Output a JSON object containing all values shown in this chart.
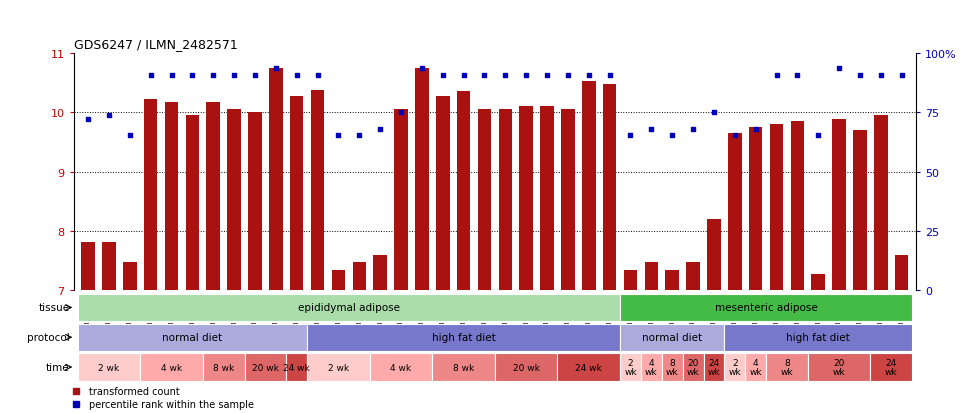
{
  "title": "GDS6247 / ILMN_2482571",
  "ylim": [
    7,
    11
  ],
  "yticks_left": [
    7,
    8,
    9,
    10,
    11
  ],
  "yticks_right_vals": [
    7,
    8,
    9,
    10,
    11
  ],
  "yticks_right_labels": [
    "0",
    "25",
    "50",
    "75",
    "100%"
  ],
  "samples": [
    "GSM971546",
    "GSM971547",
    "GSM971548",
    "GSM971549",
    "GSM971550",
    "GSM971551",
    "GSM971552",
    "GSM971553",
    "GSM971554",
    "GSM971555",
    "GSM971556",
    "GSM971557",
    "GSM971558",
    "GSM971559",
    "GSM971560",
    "GSM971561",
    "GSM971562",
    "GSM971563",
    "GSM971564",
    "GSM971565",
    "GSM971566",
    "GSM971567",
    "GSM971568",
    "GSM971569",
    "GSM971570",
    "GSM971571",
    "GSM971572",
    "GSM971573",
    "GSM971574",
    "GSM971575",
    "GSM971576",
    "GSM971577",
    "GSM971578",
    "GSM971579",
    "GSM971580",
    "GSM971581",
    "GSM971582",
    "GSM971583",
    "GSM971584",
    "GSM971585"
  ],
  "bar_values": [
    7.82,
    7.82,
    7.48,
    10.22,
    10.18,
    9.95,
    10.18,
    10.05,
    10.01,
    10.75,
    10.28,
    10.37,
    7.34,
    7.48,
    7.6,
    10.05,
    10.75,
    10.28,
    10.35,
    10.05,
    10.05,
    10.1,
    10.1,
    10.05,
    10.52,
    10.48,
    7.34,
    7.48,
    7.34,
    7.48,
    8.2,
    9.65,
    9.75,
    9.8,
    9.85,
    7.28,
    9.88,
    9.7,
    9.96,
    7.6
  ],
  "dot_values": [
    9.88,
    9.95,
    9.62,
    10.62,
    10.62,
    10.62,
    10.62,
    10.62,
    10.62,
    10.75,
    10.62,
    10.62,
    9.62,
    9.62,
    9.72,
    10.0,
    10.75,
    10.62,
    10.62,
    10.62,
    10.62,
    10.62,
    10.62,
    10.62,
    10.62,
    10.62,
    9.62,
    9.72,
    9.62,
    9.72,
    10.0,
    9.62,
    9.72,
    10.62,
    10.62,
    9.62,
    10.75,
    10.62,
    10.62,
    10.62
  ],
  "bar_color": "#AA1111",
  "dot_color": "#0000BB",
  "tissue_segments": [
    {
      "text": "epididymal adipose",
      "start": 0,
      "end": 26,
      "color": "#AADDAA"
    },
    {
      "text": "mesenteric adipose",
      "start": 26,
      "end": 40,
      "color": "#44BB44"
    }
  ],
  "protocol_segments": [
    {
      "text": "normal diet",
      "start": 0,
      "end": 11,
      "color": "#AAAADD"
    },
    {
      "text": "high fat diet",
      "start": 11,
      "end": 26,
      "color": "#7777CC"
    },
    {
      "text": "normal diet",
      "start": 26,
      "end": 31,
      "color": "#AAAADD"
    },
    {
      "text": "high fat diet",
      "start": 31,
      "end": 40,
      "color": "#7777CC"
    }
  ],
  "time_segments": [
    {
      "text": "2 wk",
      "start": 0,
      "end": 3,
      "color": "#FFCCCC"
    },
    {
      "text": "4 wk",
      "start": 3,
      "end": 6,
      "color": "#FFAAAA"
    },
    {
      "text": "8 wk",
      "start": 6,
      "end": 8,
      "color": "#EE8888"
    },
    {
      "text": "20 wk",
      "start": 8,
      "end": 10,
      "color": "#DD6666"
    },
    {
      "text": "24 wk",
      "start": 10,
      "end": 11,
      "color": "#CC4444"
    },
    {
      "text": "2 wk",
      "start": 11,
      "end": 14,
      "color": "#FFCCCC"
    },
    {
      "text": "4 wk",
      "start": 14,
      "end": 17,
      "color": "#FFAAAA"
    },
    {
      "text": "8 wk",
      "start": 17,
      "end": 20,
      "color": "#EE8888"
    },
    {
      "text": "20 wk",
      "start": 20,
      "end": 23,
      "color": "#DD6666"
    },
    {
      "text": "24 wk",
      "start": 23,
      "end": 26,
      "color": "#CC4444"
    },
    {
      "text": "2\nwk",
      "start": 26,
      "end": 27,
      "color": "#FFCCCC"
    },
    {
      "text": "4\nwk",
      "start": 27,
      "end": 28,
      "color": "#FFAAAA"
    },
    {
      "text": "8\nwk",
      "start": 28,
      "end": 29,
      "color": "#EE8888"
    },
    {
      "text": "20\nwk",
      "start": 29,
      "end": 30,
      "color": "#DD6666"
    },
    {
      "text": "24\nwk",
      "start": 30,
      "end": 31,
      "color": "#CC4444"
    },
    {
      "text": "2\nwk",
      "start": 31,
      "end": 32,
      "color": "#FFCCCC"
    },
    {
      "text": "4\nwk",
      "start": 32,
      "end": 33,
      "color": "#FFAAAA"
    },
    {
      "text": "8\nwk",
      "start": 33,
      "end": 35,
      "color": "#EE8888"
    },
    {
      "text": "20\nwk",
      "start": 35,
      "end": 38,
      "color": "#DD6666"
    },
    {
      "text": "24\nwk",
      "start": 38,
      "end": 40,
      "color": "#CC4444"
    }
  ],
  "row_labels": [
    "tissue",
    "protocol",
    "time"
  ],
  "legend_items": [
    {
      "marker": "s",
      "color": "#AA1111",
      "label": "transformed count"
    },
    {
      "marker": "s",
      "color": "#0000BB",
      "label": "percentile rank within the sample"
    }
  ]
}
